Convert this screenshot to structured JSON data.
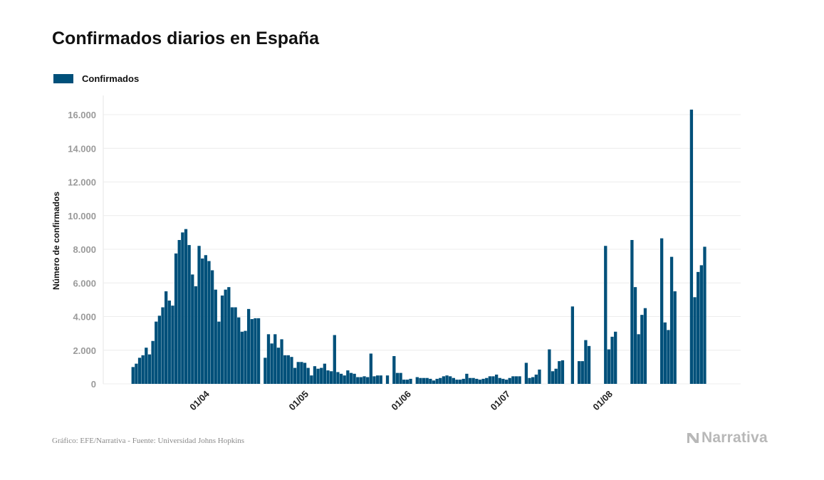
{
  "header": {
    "title": "Confirmados diarios en España"
  },
  "legend": {
    "label": "Confirmados",
    "color": "#00507a"
  },
  "footer": {
    "source": "Gráfico: EFE/Narrativa - Fuente: Universidad Johns Hopkins",
    "brand": "Narrativa",
    "brand_icon": "narrativa-logo-icon"
  },
  "chart_data": {
    "type": "bar",
    "title": "Confirmados diarios en España",
    "ylabel": "Número de confirmados",
    "xlabel": "",
    "ylim": [
      0,
      17000
    ],
    "yticks": [
      0,
      2000,
      4000,
      6000,
      8000,
      10000,
      12000,
      14000,
      16000
    ],
    "ytick_labels": [
      "0",
      "2.000",
      "4.000",
      "6.000",
      "8.000",
      "10.000",
      "12.000",
      "14.000",
      "16.000"
    ],
    "grid": true,
    "legend_position": "top-left",
    "x_start": "2020-03-10",
    "xticks": [
      {
        "label": "01/04",
        "date": "2020-04-01"
      },
      {
        "label": "01/05",
        "date": "2020-05-01"
      },
      {
        "label": "01/06",
        "date": "2020-06-01"
      },
      {
        "label": "01/07",
        "date": "2020-07-01"
      },
      {
        "label": "01/08",
        "date": "2020-08-01"
      }
    ],
    "series": [
      {
        "name": "Confirmados",
        "color": "#00507a",
        "values": [
          1000,
          1200,
          1550,
          1700,
          2150,
          1750,
          2550,
          3700,
          4050,
          4550,
          5500,
          4950,
          4650,
          7750,
          8550,
          9000,
          9200,
          8250,
          6500,
          5800,
          8200,
          7450,
          7650,
          7300,
          6750,
          5600,
          3700,
          5250,
          5600,
          5750,
          4550,
          4550,
          3950,
          3100,
          3150,
          4450,
          3850,
          3900,
          3900,
          0,
          1550,
          2950,
          2400,
          2950,
          2150,
          2650,
          1700,
          1700,
          1600,
          950,
          1300,
          1300,
          1250,
          950,
          500,
          1050,
          900,
          950,
          1200,
          800,
          750,
          2900,
          700,
          600,
          500,
          800,
          650,
          600,
          400,
          400,
          450,
          400,
          1800,
          450,
          500,
          500,
          0,
          500,
          0,
          1650,
          650,
          650,
          250,
          250,
          300,
          0,
          400,
          350,
          350,
          350,
          300,
          200,
          300,
          350,
          450,
          500,
          450,
          350,
          250,
          250,
          300,
          600,
          350,
          350,
          300,
          250,
          300,
          350,
          450,
          450,
          550,
          350,
          300,
          250,
          350,
          450,
          450,
          450,
          0,
          1250,
          350,
          400,
          550,
          850,
          0,
          0,
          2050,
          750,
          900,
          1350,
          1400,
          0,
          0,
          4600,
          0,
          1350,
          1350,
          2600,
          2250,
          0,
          0,
          0,
          0,
          8200,
          2050,
          2800,
          3100,
          0,
          0,
          0,
          0,
          8550,
          5750,
          2950,
          4100,
          4500,
          0,
          0,
          0,
          0,
          8650,
          3650,
          3200,
          7550,
          5500,
          0,
          0,
          0,
          0,
          16300,
          5150,
          6650,
          7050,
          8150
        ]
      }
    ]
  }
}
